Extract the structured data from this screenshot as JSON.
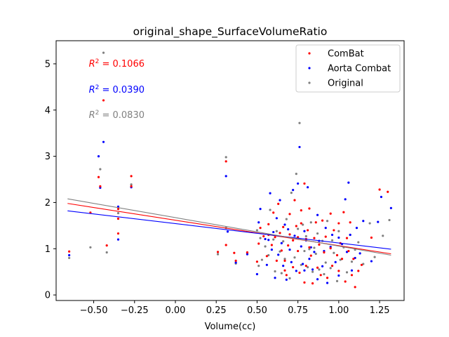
{
  "chart_data": {
    "type": "scatter",
    "title": "original_shape_SurfaceVolumeRatio",
    "xlabel": "Volume(cc)",
    "ylabel": "",
    "xlim": [
      -0.73,
      1.4
    ],
    "ylim": [
      -0.12,
      5.5
    ],
    "xticks": [
      -0.5,
      -0.25,
      0.0,
      0.25,
      0.5,
      0.75,
      1.0,
      1.25
    ],
    "xtick_labels": [
      "−0.50",
      "−0.25",
      "0.00",
      "0.25",
      "0.50",
      "0.75",
      "1.00",
      "1.25"
    ],
    "yticks": [
      0,
      1,
      2,
      3,
      4,
      5
    ],
    "ytick_labels": [
      "0",
      "1",
      "2",
      "3",
      "4",
      "5"
    ],
    "grid": false,
    "legend": {
      "position": "top-right",
      "entries": [
        "ComBat",
        "Aorta Combat",
        "Original"
      ]
    },
    "series": [
      {
        "name": "ComBat",
        "color": "#ff0000",
        "r2_label": "= 0.1066",
        "fit": {
          "x": [
            -0.66,
            1.32
          ],
          "y": [
            1.98,
            0.89
          ]
        },
        "points": [
          [
            -0.65,
            0.94
          ],
          [
            -0.52,
            1.78
          ],
          [
            -0.47,
            2.55
          ],
          [
            -0.46,
            2.35
          ],
          [
            -0.44,
            4.21
          ],
          [
            -0.42,
            1.07
          ],
          [
            -0.35,
            1.86
          ],
          [
            -0.35,
            1.33
          ],
          [
            -0.35,
            1.65
          ],
          [
            -0.27,
            2.57
          ],
          [
            -0.27,
            2.35
          ],
          [
            0.26,
            0.93
          ],
          [
            0.31,
            2.89
          ],
          [
            0.31,
            1.08
          ],
          [
            0.36,
            0.91
          ],
          [
            0.37,
            0.74
          ],
          [
            0.44,
            0.92
          ],
          [
            0.5,
            0.72
          ],
          [
            0.51,
            1.11
          ],
          [
            0.52,
            1.45
          ],
          [
            0.54,
            1.27
          ],
          [
            0.56,
            0.84
          ],
          [
            0.57,
            1.3
          ],
          [
            0.57,
            1.53
          ],
          [
            0.59,
            1.08
          ],
          [
            0.6,
            1.78
          ],
          [
            0.61,
            1.25
          ],
          [
            0.62,
            0.74
          ],
          [
            0.63,
            1.97
          ],
          [
            0.64,
            1.34
          ],
          [
            0.65,
            0.96
          ],
          [
            0.66,
            1.47
          ],
          [
            0.67,
            0.74
          ],
          [
            0.67,
            0.53
          ],
          [
            0.68,
            0.43
          ],
          [
            0.69,
            1.07
          ],
          [
            0.7,
            1.31
          ],
          [
            0.7,
            1.75
          ],
          [
            0.72,
            0.6
          ],
          [
            0.72,
            1.18
          ],
          [
            0.73,
            2.05
          ],
          [
            0.74,
            1.49
          ],
          [
            0.75,
            1.25
          ],
          [
            0.75,
            0.95
          ],
          [
            0.76,
            0.48
          ],
          [
            0.77,
            1.55
          ],
          [
            0.77,
            1.83
          ],
          [
            0.79,
            0.27
          ],
          [
            0.79,
            2.41
          ],
          [
            0.8,
            1.21
          ],
          [
            0.8,
            0.63
          ],
          [
            0.81,
            1.4
          ],
          [
            0.82,
            1.03
          ],
          [
            0.82,
            1.87
          ],
          [
            0.83,
            0.85
          ],
          [
            0.84,
            0.25
          ],
          [
            0.85,
            1.23
          ],
          [
            0.86,
            1.57
          ],
          [
            0.87,
            0.59
          ],
          [
            0.88,
            1.09
          ],
          [
            0.89,
            0.43
          ],
          [
            0.9,
            1.61
          ],
          [
            0.91,
            0.92
          ],
          [
            0.92,
            1.26
          ],
          [
            0.93,
            0.37
          ],
          [
            0.95,
            1.76
          ],
          [
            0.95,
            1.01
          ],
          [
            0.96,
            0.63
          ],
          [
            0.97,
            1.4
          ],
          [
            0.99,
            0.86
          ],
          [
            1.0,
            0.52
          ],
          [
            1.0,
            1.55
          ],
          [
            1.01,
            1.12
          ],
          [
            1.02,
            0.78
          ],
          [
            1.03,
            1.79
          ],
          [
            1.04,
            0.29
          ],
          [
            1.05,
            1.23
          ],
          [
            1.06,
            0.95
          ],
          [
            1.07,
            1.57
          ],
          [
            1.08,
            0.43
          ],
          [
            1.09,
            0.78
          ],
          [
            1.1,
            0.17
          ],
          [
            1.12,
            0.52
          ],
          [
            1.14,
            0.65
          ],
          [
            1.2,
            1.24
          ],
          [
            1.25,
            2.28
          ],
          [
            1.3,
            2.23
          ]
        ]
      },
      {
        "name": "Aorta Combat",
        "color": "#0000ff",
        "r2_label": "= 0.0390",
        "fit": {
          "x": [
            -0.66,
            1.32
          ],
          "y": [
            1.82,
            0.99
          ]
        },
        "points": [
          [
            -0.65,
            0.86
          ],
          [
            -0.47,
            3.0
          ],
          [
            -0.46,
            2.32
          ],
          [
            -0.44,
            3.31
          ],
          [
            -0.35,
            1.91
          ],
          [
            -0.35,
            1.2
          ],
          [
            -0.27,
            2.33
          ],
          [
            0.31,
            2.57
          ],
          [
            0.32,
            1.37
          ],
          [
            0.37,
            0.7
          ],
          [
            0.44,
            0.88
          ],
          [
            0.5,
            0.45
          ],
          [
            0.51,
            1.57
          ],
          [
            0.52,
            1.86
          ],
          [
            0.55,
            1.21
          ],
          [
            0.56,
            0.65
          ],
          [
            0.57,
            1.19
          ],
          [
            0.58,
            2.2
          ],
          [
            0.59,
            0.98
          ],
          [
            0.6,
            1.36
          ],
          [
            0.61,
            0.37
          ],
          [
            0.62,
            1.66
          ],
          [
            0.63,
            0.87
          ],
          [
            0.64,
            2.05
          ],
          [
            0.65,
            1.12
          ],
          [
            0.66,
            0.63
          ],
          [
            0.67,
            1.52
          ],
          [
            0.68,
            0.33
          ],
          [
            0.69,
            1.42
          ],
          [
            0.7,
            0.98
          ],
          [
            0.71,
            0.71
          ],
          [
            0.72,
            2.27
          ],
          [
            0.73,
            1.28
          ],
          [
            0.74,
            0.52
          ],
          [
            0.75,
            2.41
          ],
          [
            0.76,
            3.2
          ],
          [
            0.77,
            1.05
          ],
          [
            0.78,
            0.67
          ],
          [
            0.79,
            1.38
          ],
          [
            0.79,
            0.53
          ],
          [
            0.8,
            1.18
          ],
          [
            0.81,
            2.33
          ],
          [
            0.82,
            0.78
          ],
          [
            0.83,
            1.03
          ],
          [
            0.84,
            0.55
          ],
          [
            0.85,
            0.93
          ],
          [
            0.87,
            1.73
          ],
          [
            0.87,
            0.34
          ],
          [
            0.88,
            1.17
          ],
          [
            0.9,
            0.62
          ],
          [
            0.91,
            0.95
          ],
          [
            0.92,
            1.45
          ],
          [
            0.93,
            0.26
          ],
          [
            0.95,
            1.04
          ],
          [
            0.96,
            1.3
          ],
          [
            0.98,
            0.71
          ],
          [
            1.0,
            1.24
          ],
          [
            1.0,
            0.42
          ],
          [
            1.02,
            1.1
          ],
          [
            1.04,
            2.07
          ],
          [
            1.05,
            0.93
          ],
          [
            1.06,
            2.43
          ],
          [
            1.07,
            1.3
          ],
          [
            1.08,
            0.53
          ],
          [
            1.1,
            0.8
          ],
          [
            1.11,
            1.45
          ],
          [
            1.13,
            0.9
          ],
          [
            1.15,
            1.6
          ],
          [
            1.2,
            0.73
          ],
          [
            1.24,
            1.58
          ],
          [
            1.26,
            2.12
          ],
          [
            1.32,
            1.88
          ]
        ]
      },
      {
        "name": "Original",
        "color": "#808080",
        "r2_label": "= 0.0830",
        "fit": {
          "x": [
            -0.66,
            1.32
          ],
          "y": [
            2.08,
            0.86
          ]
        },
        "points": [
          [
            -0.65,
            0.8
          ],
          [
            -0.52,
            1.03
          ],
          [
            -0.46,
            2.72
          ],
          [
            -0.44,
            5.24
          ],
          [
            -0.42,
            0.92
          ],
          [
            -0.35,
            1.77
          ],
          [
            -0.27,
            2.39
          ],
          [
            0.26,
            0.88
          ],
          [
            0.31,
            2.98
          ],
          [
            0.31,
            1.45
          ],
          [
            0.37,
            0.68
          ],
          [
            0.44,
            0.91
          ],
          [
            0.5,
            1.4
          ],
          [
            0.51,
            0.63
          ],
          [
            0.52,
            1.23
          ],
          [
            0.53,
            0.76
          ],
          [
            0.55,
            1.05
          ],
          [
            0.57,
            0.86
          ],
          [
            0.58,
            1.84
          ],
          [
            0.6,
            1.2
          ],
          [
            0.61,
            0.51
          ],
          [
            0.62,
            1.38
          ],
          [
            0.64,
            0.94
          ],
          [
            0.65,
            0.47
          ],
          [
            0.66,
            1.16
          ],
          [
            0.67,
            0.78
          ],
          [
            0.68,
            1.64
          ],
          [
            0.7,
            0.36
          ],
          [
            0.71,
            2.21
          ],
          [
            0.72,
            1.23
          ],
          [
            0.73,
            0.81
          ],
          [
            0.74,
            2.62
          ],
          [
            0.75,
            1.43
          ],
          [
            0.76,
            3.72
          ],
          [
            0.77,
            0.65
          ],
          [
            0.78,
            1.52
          ],
          [
            0.79,
            0.95
          ],
          [
            0.8,
            1.27
          ],
          [
            0.81,
            0.6
          ],
          [
            0.82,
            0.99
          ],
          [
            0.83,
            1.57
          ],
          [
            0.84,
            0.5
          ],
          [
            0.85,
            1.02
          ],
          [
            0.86,
            0.89
          ],
          [
            0.87,
            1.33
          ],
          [
            0.88,
            0.55
          ],
          [
            0.9,
            1.17
          ],
          [
            0.91,
            0.45
          ],
          [
            0.92,
            0.7
          ],
          [
            0.93,
            1.6
          ],
          [
            0.95,
            0.58
          ],
          [
            0.96,
            1.18
          ],
          [
            0.97,
            0.91
          ],
          [
            0.99,
            0.3
          ],
          [
            1.0,
            1.38
          ],
          [
            1.01,
            0.76
          ],
          [
            1.03,
            1.03
          ],
          [
            1.05,
            0.49
          ],
          [
            1.07,
            1.3
          ],
          [
            1.08,
            0.72
          ],
          [
            1.1,
            0.98
          ],
          [
            1.12,
            1.14
          ],
          [
            1.15,
            0.67
          ],
          [
            1.19,
            1.55
          ],
          [
            1.22,
            0.82
          ],
          [
            1.27,
            1.28
          ],
          [
            1.31,
            1.62
          ]
        ]
      }
    ]
  }
}
